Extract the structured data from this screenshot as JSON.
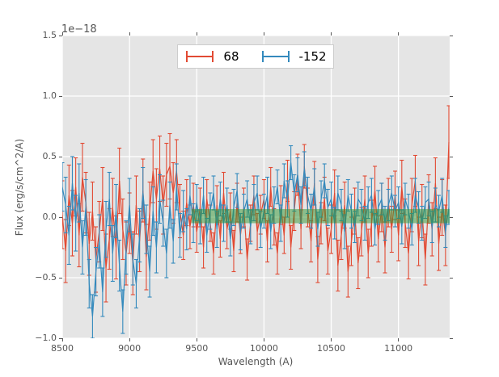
{
  "figure": {
    "background": "#ffffff",
    "axes_background": "#e5e5e5",
    "grid_color": "#ffffff",
    "tick_color": "#555555",
    "label_color": "#555555",
    "offset_text": "1e−18"
  },
  "legend": {
    "entries": [
      {
        "label": "68",
        "color": "#e24a33"
      },
      {
        "label": "-152",
        "color": "#348abd"
      }
    ]
  },
  "chart_data": {
    "type": "line",
    "subtype": "errorbar",
    "title": "",
    "xlabel": "Wavelength (A)",
    "ylabel": "Flux (erg/s/cm^2/A)",
    "y_offset_factor": "1e−18",
    "xlim": [
      8500,
      11381
    ],
    "ylim": [
      -1.0,
      1.5
    ],
    "xticks": [
      8500,
      9000,
      9500,
      10000,
      10500,
      11000
    ],
    "xtick_labels": [
      "8500",
      "9000",
      "9500",
      "10000",
      "10500",
      "11000"
    ],
    "yticks": [
      1.5,
      1.0,
      0.5,
      0.0,
      -0.5,
      -1.0
    ],
    "ytick_labels": [
      "1.5",
      "1.0",
      "0.5",
      "0.0",
      "−0.5",
      "−1.0"
    ],
    "grid": true,
    "legend_position": "upper center",
    "band": {
      "x0": 9460,
      "x1": 11381,
      "y0": -0.05,
      "y1": 0.067,
      "color": "rgba(50,150,50,0.5)"
    },
    "x_start": 8500,
    "x_step": 25,
    "series": [
      {
        "name": "68",
        "color": "#e24a33",
        "y": [
          0.02,
          -0.28,
          0.18,
          -0.05,
          0.25,
          -0.15,
          0.33,
          0.12,
          -0.22,
          0.05,
          -0.35,
          -0.12,
          0.15,
          -0.42,
          -0.18,
          0.08,
          -0.25,
          0.3,
          -0.1,
          -0.3,
          -0.05,
          -0.38,
          0.1,
          -0.2,
          0.22,
          -0.33,
          0.05,
          0.38,
          0.15,
          0.4,
          0.1,
          0.35,
          0.42,
          0.2,
          0.38,
          0.05,
          -0.15,
          0.12,
          -0.08,
          0.1,
          -0.12,
          0.08,
          -0.25,
          0.15,
          -0.05,
          -0.3,
          0.1,
          -0.18,
          0.2,
          -0.1,
          0.05,
          -0.28,
          0.12,
          -0.15,
          0.08,
          -0.35,
          -0.05,
          0.18,
          -0.12,
          0.02,
          0.15,
          -0.2,
          0.25,
          -0.08,
          -0.3,
          0.1,
          -0.15,
          0.3,
          -0.25,
          0.05,
          0.35,
          -0.1,
          0.42,
          0.08,
          -0.2,
          0.28,
          -0.35,
          -0.05,
          0.15,
          -0.28,
          -0.1,
          0.2,
          -0.4,
          -0.15,
          0.1,
          -0.45,
          -0.2,
          0.05,
          -0.38,
          -0.12,
          0.15,
          -0.3,
          -0.05,
          0.22,
          -0.18,
          0.08,
          -0.25,
          0.12,
          -0.1,
          0.18,
          -0.15,
          0.25,
          -0.05,
          -0.3,
          0.1,
          0.3,
          -0.2,
          0.05,
          -0.35,
          0.15,
          -0.1,
          0.28,
          -0.22,
          0.08,
          -0.15,
          0.62
        ],
        "yerr": [
          0.28,
          0.26,
          0.25,
          0.27,
          0.24,
          0.26,
          0.28,
          0.25,
          0.26,
          0.24,
          0.27,
          0.25,
          0.26,
          0.28,
          0.25,
          0.24,
          0.26,
          0.27,
          0.25,
          0.26,
          0.25,
          0.26,
          0.24,
          0.25,
          0.26,
          0.27,
          0.24,
          0.26,
          0.25,
          0.27,
          0.24,
          0.26,
          0.27,
          0.25,
          0.26,
          0.22,
          0.2,
          0.19,
          0.18,
          0.18,
          0.17,
          0.16,
          0.17,
          0.16,
          0.15,
          0.17,
          0.16,
          0.15,
          0.17,
          0.16,
          0.15,
          0.17,
          0.16,
          0.15,
          0.16,
          0.17,
          0.15,
          0.16,
          0.15,
          0.16,
          0.16,
          0.17,
          0.16,
          0.15,
          0.17,
          0.16,
          0.15,
          0.17,
          0.18,
          0.16,
          0.17,
          0.16,
          0.18,
          0.16,
          0.17,
          0.18,
          0.19,
          0.17,
          0.18,
          0.19,
          0.2,
          0.19,
          0.21,
          0.2,
          0.19,
          0.21,
          0.2,
          0.19,
          0.21,
          0.2,
          0.19,
          0.2,
          0.19,
          0.2,
          0.19,
          0.2,
          0.21,
          0.2,
          0.19,
          0.2,
          0.21,
          0.22,
          0.2,
          0.21,
          0.22,
          0.21,
          0.2,
          0.22,
          0.21,
          0.2,
          0.22,
          0.21,
          0.22,
          0.23,
          0.25,
          0.3
        ]
      },
      {
        "name": "-152",
        "color": "#348abd",
        "y": [
          0.25,
          0.1,
          -0.15,
          0.28,
          -0.05,
          0.2,
          -0.25,
          0.08,
          -0.55,
          -0.82,
          -0.45,
          -0.2,
          -0.62,
          -0.1,
          0.15,
          -0.3,
          0.05,
          -0.4,
          -0.78,
          -0.25,
          0.1,
          -0.35,
          -0.55,
          -0.15,
          0.2,
          -0.1,
          -0.45,
          0.05,
          -0.25,
          0.15,
          -0.05,
          -0.3,
          0.1,
          -0.2,
          0.25,
          -0.15,
          0.05,
          -0.1,
          0.18,
          -0.05,
          0.12,
          -0.08,
          0.18,
          -0.15,
          0.05,
          0.2,
          -0.1,
          0.15,
          -0.05,
          0.1,
          -0.18,
          0.08,
          0.22,
          -0.12,
          0.05,
          0.15,
          -0.08,
          0.12,
          0.2,
          -0.1,
          0.05,
          0.18,
          -0.12,
          0.1,
          0.25,
          -0.05,
          0.3,
          0.15,
          0.45,
          0.2,
          0.35,
          0.1,
          0.4,
          0.18,
          0.05,
          0.25,
          -0.1,
          0.15,
          0.3,
          0.08,
          0.15,
          -0.05,
          0.2,
          0.1,
          -0.12,
          0.18,
          0.05,
          -0.08,
          0.15,
          0.1,
          -0.05,
          0.12,
          0.18,
          -0.1,
          0.08,
          0.15,
          -0.05,
          0.1,
          0.2,
          0.05,
          0.12,
          -0.08,
          0.15,
          0.05,
          -0.1,
          0.18,
          0.08,
          -0.05,
          0.12,
          0.15,
          -0.08,
          0.1,
          0.05,
          0.18,
          -0.12,
          0.08
        ],
        "yerr": [
          0.2,
          0.23,
          0.24,
          0.22,
          0.23,
          0.24,
          0.22,
          0.23,
          0.2,
          0.18,
          0.2,
          0.22,
          0.2,
          0.23,
          0.22,
          0.23,
          0.22,
          0.21,
          0.18,
          0.22,
          0.22,
          0.21,
          0.2,
          0.22,
          0.21,
          0.2,
          0.21,
          0.2,
          0.21,
          0.2,
          0.19,
          0.2,
          0.19,
          0.18,
          0.19,
          0.18,
          0.17,
          0.17,
          0.16,
          0.16,
          0.15,
          0.14,
          0.15,
          0.14,
          0.15,
          0.14,
          0.15,
          0.14,
          0.15,
          0.14,
          0.14,
          0.15,
          0.14,
          0.15,
          0.14,
          0.15,
          0.14,
          0.15,
          0.14,
          0.15,
          0.14,
          0.15,
          0.14,
          0.15,
          0.14,
          0.15,
          0.14,
          0.15,
          0.14,
          0.15,
          0.14,
          0.15,
          0.14,
          0.15,
          0.14,
          0.15,
          0.14,
          0.15,
          0.14,
          0.15,
          0.14,
          0.13,
          0.14,
          0.13,
          0.14,
          0.13,
          0.14,
          0.13,
          0.14,
          0.13,
          0.14,
          0.13,
          0.14,
          0.13,
          0.14,
          0.13,
          0.14,
          0.13,
          0.14,
          0.13,
          0.13,
          0.14,
          0.13,
          0.14,
          0.13,
          0.14,
          0.13,
          0.14,
          0.13,
          0.14,
          0.13,
          0.14,
          0.13,
          0.14,
          0.13,
          0.14
        ]
      }
    ]
  }
}
